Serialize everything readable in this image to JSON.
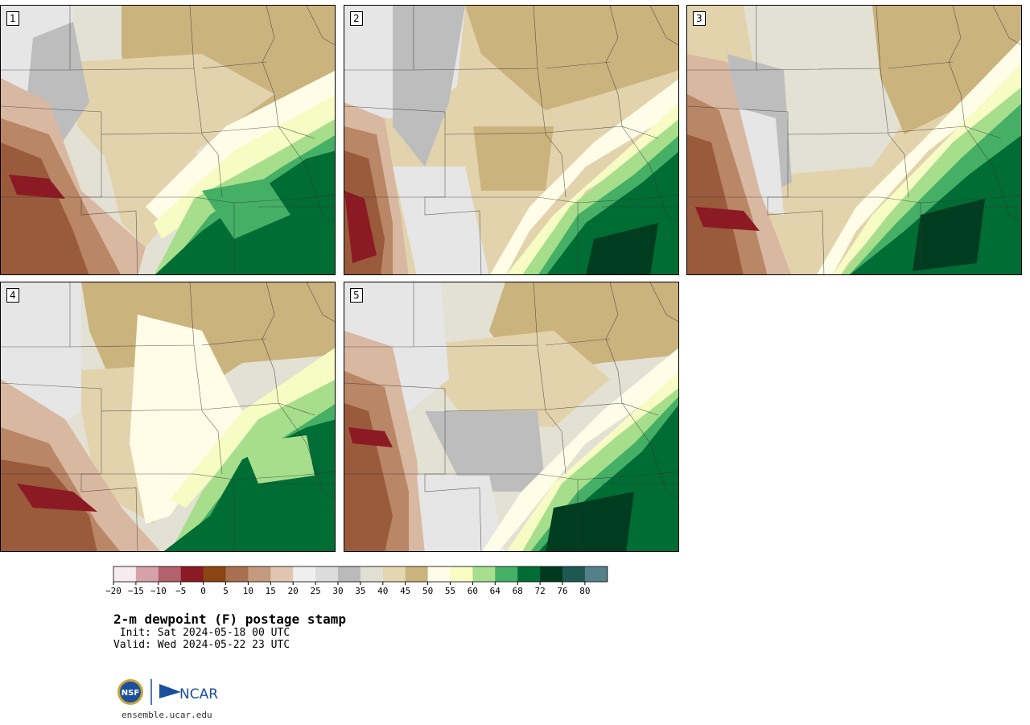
{
  "panels": [
    {
      "label": "1",
      "variant": 0
    },
    {
      "label": "2",
      "variant": 1
    },
    {
      "label": "3",
      "variant": 2
    },
    {
      "label": "4",
      "variant": 3
    },
    {
      "label": "5",
      "variant": 4
    }
  ],
  "colorbar": {
    "colors": [
      "#f6ecef",
      "#d6a2a9",
      "#b3616b",
      "#8b1a24",
      "#8b4513",
      "#a87050",
      "#c49a80",
      "#e0c6b2",
      "#efefef",
      "#dcdcdc",
      "#bababa",
      "#e1dfd1",
      "#e3d6b1",
      "#cbb37e",
      "#fffdea",
      "#f8fdc4",
      "#a7df8e",
      "#46b066",
      "#006d35",
      "#003a1e",
      "#1d5950",
      "#54808a"
    ],
    "ticks": [
      "−20",
      "−15",
      "−10",
      "−5",
      "0",
      "5",
      "10",
      "15",
      "20",
      "25",
      "30",
      "35",
      "40",
      "45",
      "50",
      "55",
      "60",
      "64",
      "68",
      "72",
      "76",
      "80"
    ]
  },
  "title": "2-m dewpoint (F) postage stamp",
  "init": " Init: Sat 2024-05-18 00 UTC",
  "valid": "Valid: Wed 2024-05-22 23 UTC",
  "logo": {
    "left": "NSF",
    "right": "NCAR"
  },
  "site": "ensemble.ucar.edu"
}
